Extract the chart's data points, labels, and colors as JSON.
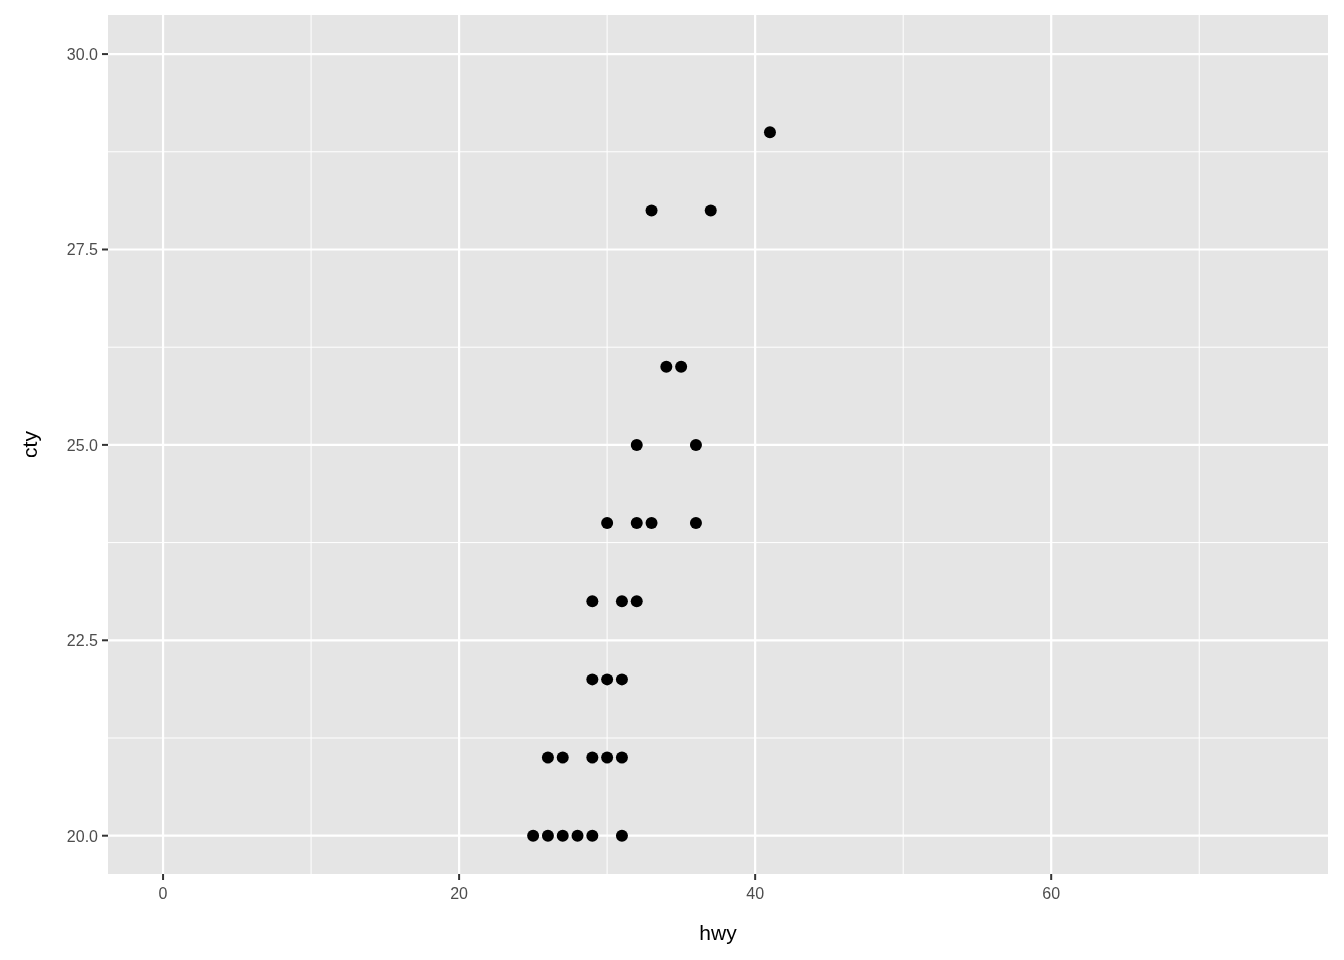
{
  "chart_data": {
    "type": "scatter",
    "xlabel": "hwy",
    "ylabel": "cty",
    "x": [
      41,
      33,
      37,
      34,
      35,
      32,
      36,
      30,
      32,
      33,
      36,
      29,
      31,
      32,
      29,
      30,
      31,
      26,
      27,
      29,
      30,
      31,
      25,
      26,
      27,
      28,
      29,
      31
    ],
    "values": [
      29,
      28,
      28,
      26,
      26,
      25,
      25,
      24,
      24,
      24,
      24,
      23,
      23,
      23,
      22,
      22,
      22,
      21,
      21,
      21,
      21,
      21,
      20,
      20,
      20,
      20,
      20,
      20
    ],
    "color": "#000000",
    "marker": "circle",
    "xlim": [
      -3.72,
      78.7
    ],
    "ylim": [
      19.51,
      30.5
    ],
    "xticks": [
      0,
      20,
      40,
      60
    ],
    "yticks": [
      {
        "value": 20,
        "label": "20.0"
      },
      22.5,
      {
        "value": 25,
        "label": "25.0"
      },
      27.5,
      {
        "value": 30,
        "label": "30.0"
      }
    ],
    "grid": true
  }
}
